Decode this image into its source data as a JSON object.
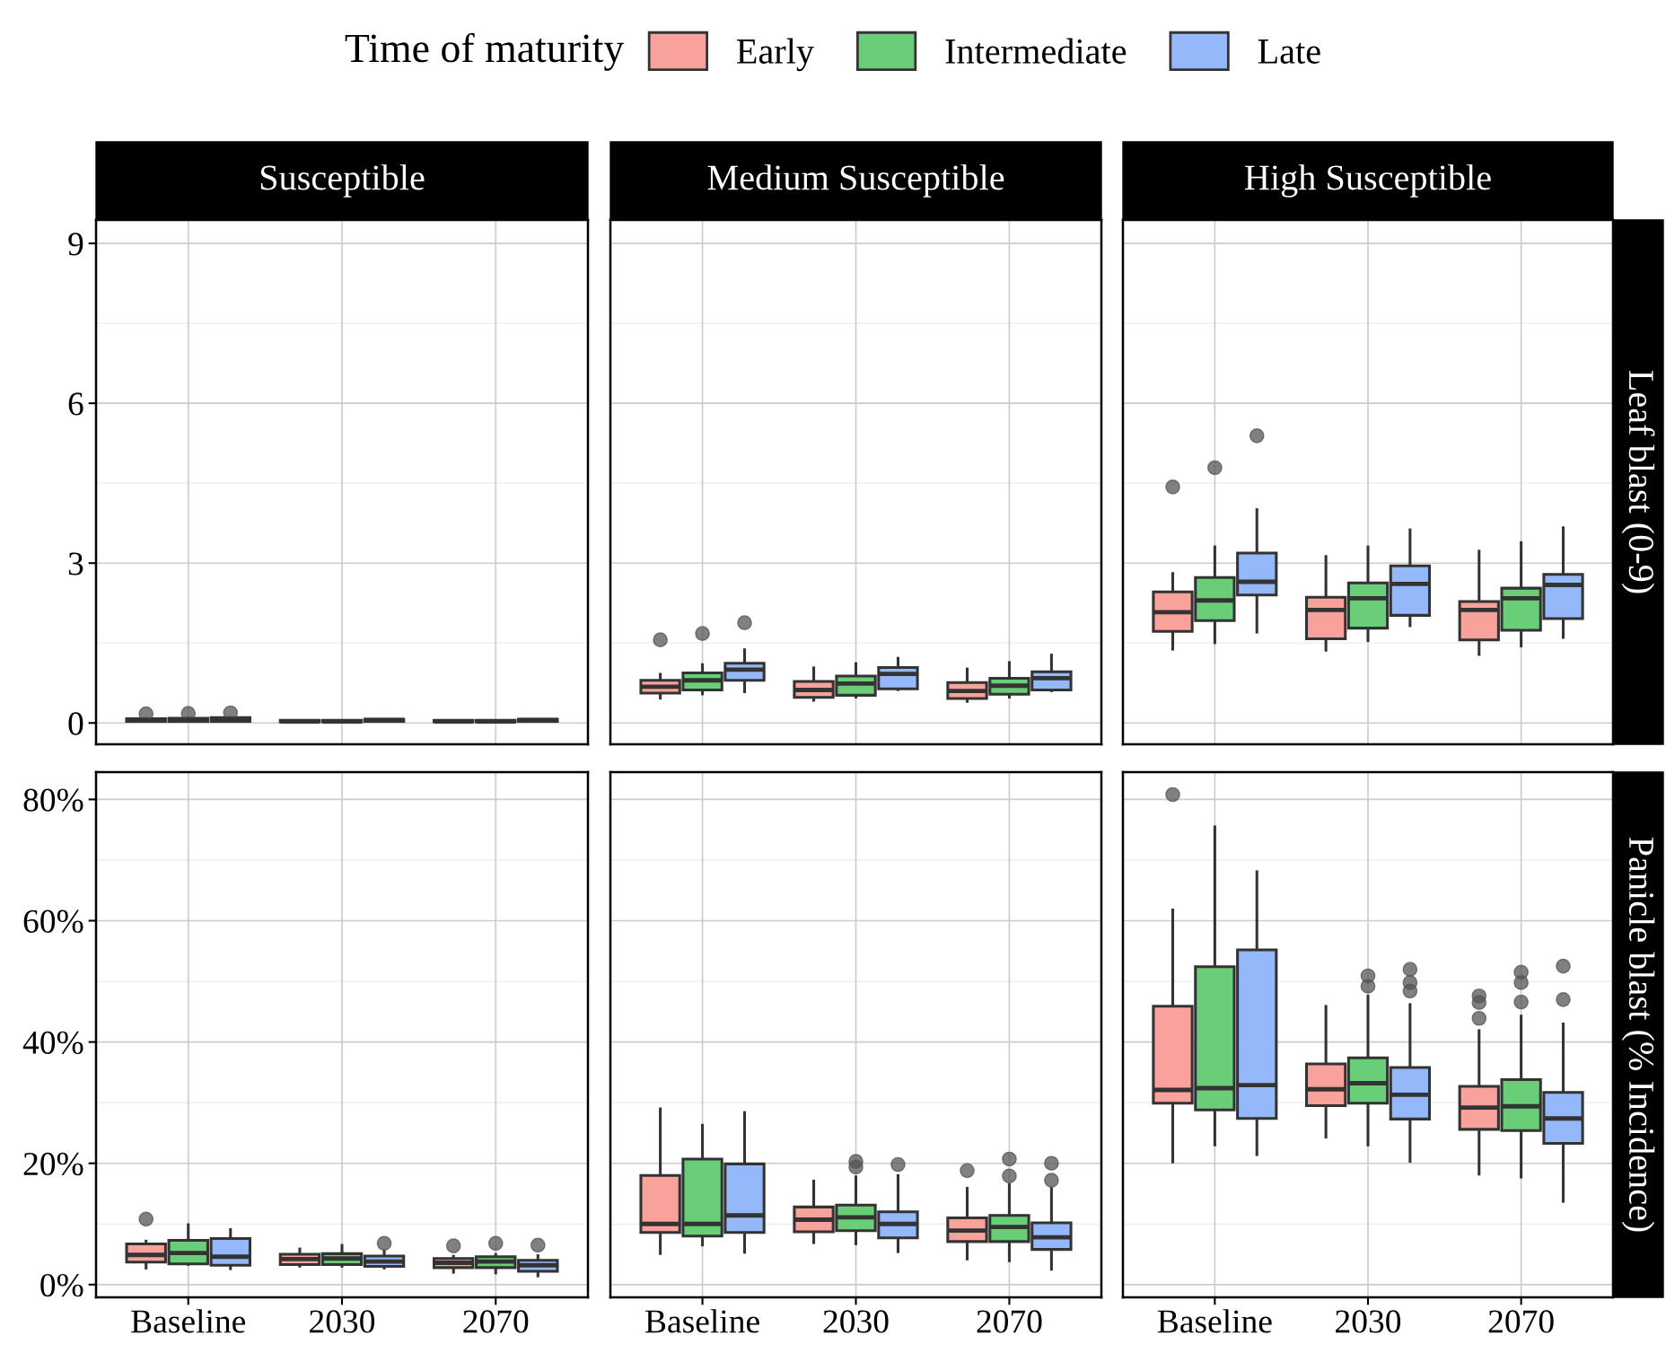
{
  "chart_data": [
    {
      "type": "box",
      "title": "Susceptible",
      "legend_title": "Time of maturity",
      "legend": "top",
      "grid": true,
      "tick_labels": "y",
      "categories": [
        "Baseline",
        "2030",
        "2070"
      ],
      "ylim": [
        -0.4,
        9.44
      ],
      "yticks": [
        0,
        3,
        6,
        9
      ],
      "series": [
        {
          "name": "Early",
          "color": "#f8a29b",
          "boxes": [
            {
              "low": 0.01,
              "q1": 0.03,
              "median": 0.05,
              "q3": 0.08,
              "high": 0.11,
              "outliers": [
                0.17
              ]
            },
            {
              "low": 0.01,
              "q1": 0.02,
              "median": 0.03,
              "q3": 0.05,
              "high": 0.07
            },
            {
              "low": 0.01,
              "q1": 0.02,
              "median": 0.03,
              "q3": 0.05,
              "high": 0.07
            }
          ]
        },
        {
          "name": "Intermediate",
          "color": "#6acd78",
          "boxes": [
            {
              "low": 0.01,
              "q1": 0.03,
              "median": 0.06,
              "q3": 0.09,
              "high": 0.12,
              "outliers": [
                0.18
              ]
            },
            {
              "low": 0.01,
              "q1": 0.02,
              "median": 0.03,
              "q3": 0.05,
              "high": 0.07
            },
            {
              "low": 0.01,
              "q1": 0.02,
              "median": 0.03,
              "q3": 0.05,
              "high": 0.07
            }
          ]
        },
        {
          "name": "Late",
          "color": "#95b8fa",
          "boxes": [
            {
              "low": 0.02,
              "q1": 0.03,
              "median": 0.07,
              "q3": 0.1,
              "high": 0.13,
              "outliers": [
                0.19
              ]
            },
            {
              "low": 0.01,
              "q1": 0.03,
              "median": 0.05,
              "q3": 0.07,
              "high": 0.09
            },
            {
              "low": 0.01,
              "q1": 0.03,
              "median": 0.05,
              "q3": 0.07,
              "high": 0.08
            }
          ]
        }
      ]
    },
    {
      "type": "box",
      "title": "Medium Susceptible",
      "grid": true,
      "tick_labels": false,
      "categories": [
        "Baseline",
        "2030",
        "2070"
      ],
      "ylim": [
        -0.4,
        9.44
      ],
      "yticks": [
        0,
        3,
        6,
        9
      ],
      "series": [
        {
          "name": "Early",
          "color": "#f8a29b",
          "boxes": [
            {
              "low": 0.44,
              "q1": 0.56,
              "median": 0.68,
              "q3": 0.8,
              "high": 0.94,
              "outliers": [
                1.56
              ]
            },
            {
              "low": 0.4,
              "q1": 0.48,
              "median": 0.62,
              "q3": 0.78,
              "high": 1.06
            },
            {
              "low": 0.38,
              "q1": 0.46,
              "median": 0.6,
              "q3": 0.76,
              "high": 1.04
            }
          ]
        },
        {
          "name": "Intermediate",
          "color": "#6acd78",
          "boxes": [
            {
              "low": 0.52,
              "q1": 0.62,
              "median": 0.8,
              "q3": 0.94,
              "high": 1.12,
              "outliers": [
                1.68
              ]
            },
            {
              "low": 0.46,
              "q1": 0.52,
              "median": 0.74,
              "q3": 0.88,
              "high": 1.14
            },
            {
              "low": 0.46,
              "q1": 0.54,
              "median": 0.7,
              "q3": 0.84,
              "high": 1.16
            }
          ]
        },
        {
          "name": "Late",
          "color": "#95b8fa",
          "boxes": [
            {
              "low": 0.56,
              "q1": 0.8,
              "median": 1.0,
              "q3": 1.12,
              "high": 1.4,
              "outliers": [
                1.88
              ]
            },
            {
              "low": 0.6,
              "q1": 0.64,
              "median": 0.92,
              "q3": 1.04,
              "high": 1.24
            },
            {
              "low": 0.58,
              "q1": 0.62,
              "median": 0.84,
              "q3": 0.96,
              "high": 1.3
            }
          ]
        }
      ]
    },
    {
      "type": "box",
      "title": "High Susceptible",
      "y2label": "Leaf blast (0-9)",
      "grid": true,
      "tick_labels": false,
      "categories": [
        "Baseline",
        "2030",
        "2070"
      ],
      "ylim": [
        -0.4,
        9.44
      ],
      "yticks": [
        0,
        3,
        6,
        9
      ],
      "series": [
        {
          "name": "Early",
          "color": "#f8a29b",
          "boxes": [
            {
              "low": 1.36,
              "q1": 1.72,
              "median": 2.08,
              "q3": 2.46,
              "high": 2.83,
              "outliers": [
                4.43
              ]
            },
            {
              "low": 1.34,
              "q1": 1.58,
              "median": 2.12,
              "q3": 2.36,
              "high": 3.15
            },
            {
              "low": 1.26,
              "q1": 1.56,
              "median": 2.12,
              "q3": 2.28,
              "high": 3.25
            }
          ]
        },
        {
          "name": "Intermediate",
          "color": "#6acd78",
          "boxes": [
            {
              "low": 1.48,
              "q1": 1.92,
              "median": 2.3,
              "q3": 2.73,
              "high": 3.33,
              "outliers": [
                4.79
              ]
            },
            {
              "low": 1.52,
              "q1": 1.78,
              "median": 2.34,
              "q3": 2.63,
              "high": 3.33
            },
            {
              "low": 1.42,
              "q1": 1.74,
              "median": 2.34,
              "q3": 2.53,
              "high": 3.41
            }
          ]
        },
        {
          "name": "Late",
          "color": "#95b8fa",
          "boxes": [
            {
              "low": 1.68,
              "q1": 2.4,
              "median": 2.65,
              "q3": 3.19,
              "high": 4.03,
              "outliers": [
                5.39
              ]
            },
            {
              "low": 1.8,
              "q1": 2.02,
              "median": 2.61,
              "q3": 2.95,
              "high": 3.65
            },
            {
              "low": 1.58,
              "q1": 1.96,
              "median": 2.59,
              "q3": 2.79,
              "high": 3.69
            }
          ]
        }
      ]
    },
    {
      "type": "box",
      "grid": true,
      "categories": [
        "Baseline",
        "2030",
        "2070"
      ],
      "ylim": [
        -2.1,
        84.5
      ],
      "yticks": [
        {
          "value": 0,
          "label": "0%"
        },
        {
          "value": 20,
          "label": "20%"
        },
        {
          "value": 40,
          "label": "40%"
        },
        {
          "value": 60,
          "label": "60%"
        },
        {
          "value": 80,
          "label": "80%"
        }
      ],
      "series": [
        {
          "name": "Early",
          "color": "#f8a29b",
          "boxes": [
            {
              "low": 2.5,
              "q1": 3.7,
              "median": 4.9,
              "q3": 6.7,
              "high": 7.4,
              "outliers": [
                10.8
              ]
            },
            {
              "low": 2.8,
              "q1": 3.3,
              "median": 4.2,
              "q3": 5.0,
              "high": 6.1
            },
            {
              "low": 1.8,
              "q1": 2.8,
              "median": 3.6,
              "q3": 4.3,
              "high": 4.9,
              "outliers": [
                6.4
              ]
            }
          ]
        },
        {
          "name": "Intermediate",
          "color": "#6acd78",
          "boxes": [
            {
              "low": 3.1,
              "q1": 3.4,
              "median": 5.2,
              "q3": 7.3,
              "high": 10.1
            },
            {
              "low": 2.8,
              "q1": 3.3,
              "median": 4.3,
              "q3": 5.1,
              "high": 6.7
            },
            {
              "low": 1.7,
              "q1": 2.8,
              "median": 3.8,
              "q3": 4.6,
              "high": 5.2,
              "outliers": [
                6.8
              ]
            }
          ]
        },
        {
          "name": "Late",
          "color": "#95b8fa",
          "boxes": [
            {
              "low": 2.4,
              "q1": 3.2,
              "median": 4.6,
              "q3": 7.6,
              "high": 9.3
            },
            {
              "low": 2.5,
              "q1": 3.0,
              "median": 3.8,
              "q3": 4.7,
              "high": 5.8,
              "outliers": [
                6.8
              ]
            },
            {
              "low": 1.2,
              "q1": 2.2,
              "median": 3.2,
              "q3": 4.0,
              "high": 5.0,
              "outliers": [
                6.5
              ]
            }
          ]
        }
      ]
    },
    {
      "type": "box",
      "grid": true,
      "tick_labels": "x",
      "categories": [
        "Baseline",
        "2030",
        "2070"
      ],
      "ylim": [
        -2.1,
        84.5
      ],
      "yticks": [
        0,
        20,
        40,
        60,
        80
      ],
      "series": [
        {
          "name": "Early",
          "color": "#f8a29b",
          "boxes": [
            {
              "low": 4.9,
              "q1": 8.6,
              "median": 10.0,
              "q3": 18.0,
              "high": 29.2
            },
            {
              "low": 6.7,
              "q1": 8.7,
              "median": 10.7,
              "q3": 12.8,
              "high": 17.3
            },
            {
              "low": 4.0,
              "q1": 7.1,
              "median": 8.9,
              "q3": 11.0,
              "high": 16.1,
              "outliers": [
                18.8
              ]
            }
          ]
        },
        {
          "name": "Intermediate",
          "color": "#6acd78",
          "boxes": [
            {
              "low": 6.3,
              "q1": 8.0,
              "median": 10.0,
              "q3": 20.7,
              "high": 26.5
            },
            {
              "low": 6.5,
              "q1": 8.9,
              "median": 11.1,
              "q3": 13.1,
              "high": 18.0,
              "outliers": [
                19.4,
                20.3
              ]
            },
            {
              "low": 3.7,
              "q1": 7.1,
              "median": 9.5,
              "q3": 11.4,
              "high": 16.7,
              "outliers": [
                17.9,
                20.7
              ]
            }
          ]
        },
        {
          "name": "Late",
          "color": "#95b8fa",
          "boxes": [
            {
              "low": 5.1,
              "q1": 8.6,
              "median": 11.4,
              "q3": 19.9,
              "high": 28.6
            },
            {
              "low": 5.2,
              "q1": 7.7,
              "median": 10.0,
              "q3": 12.0,
              "high": 18.2,
              "outliers": [
                19.8
              ]
            },
            {
              "low": 2.3,
              "q1": 5.8,
              "median": 7.8,
              "q3": 10.2,
              "high": 16.1,
              "outliers": [
                17.2,
                20.0
              ]
            }
          ]
        }
      ]
    },
    {
      "type": "box",
      "y2label": "Panicle blast (% Incidence)",
      "grid": true,
      "tick_labels": "x",
      "categories": [
        "Baseline",
        "2030",
        "2070"
      ],
      "ylim": [
        -2.1,
        84.5
      ],
      "yticks": [
        0,
        20,
        40,
        60,
        80
      ],
      "series": [
        {
          "name": "Early",
          "color": "#f8a29b",
          "boxes": [
            {
              "low": 20.0,
              "q1": 29.9,
              "median": 32.1,
              "q3": 45.9,
              "high": 62.0,
              "outliers": [
                80.8
              ]
            },
            {
              "low": 24.1,
              "q1": 29.5,
              "median": 32.2,
              "q3": 36.4,
              "high": 46.1
            },
            {
              "low": 18.0,
              "q1": 25.6,
              "median": 29.2,
              "q3": 32.7,
              "high": 42.1,
              "outliers": [
                43.9,
                46.5,
                47.6
              ]
            }
          ]
        },
        {
          "name": "Intermediate",
          "color": "#6acd78",
          "boxes": [
            {
              "low": 22.8,
              "q1": 28.8,
              "median": 32.4,
              "q3": 52.4,
              "high": 75.7
            },
            {
              "low": 22.8,
              "q1": 29.9,
              "median": 33.2,
              "q3": 37.4,
              "high": 47.8,
              "outliers": [
                49.2,
                50.9
              ]
            },
            {
              "low": 17.5,
              "q1": 25.4,
              "median": 29.4,
              "q3": 33.8,
              "high": 44.5,
              "outliers": [
                46.6,
                49.8,
                51.5
              ]
            }
          ]
        },
        {
          "name": "Late",
          "color": "#95b8fa",
          "boxes": [
            {
              "low": 21.2,
              "q1": 27.4,
              "median": 32.9,
              "q3": 55.2,
              "high": 68.3
            },
            {
              "low": 20.1,
              "q1": 27.3,
              "median": 31.3,
              "q3": 35.8,
              "high": 46.4,
              "outliers": [
                48.4,
                49.8,
                52.0
              ]
            },
            {
              "low": 13.5,
              "q1": 23.3,
              "median": 27.4,
              "q3": 31.7,
              "high": 43.2,
              "outliers": [
                47.0,
                52.5
              ]
            }
          ]
        }
      ]
    }
  ]
}
